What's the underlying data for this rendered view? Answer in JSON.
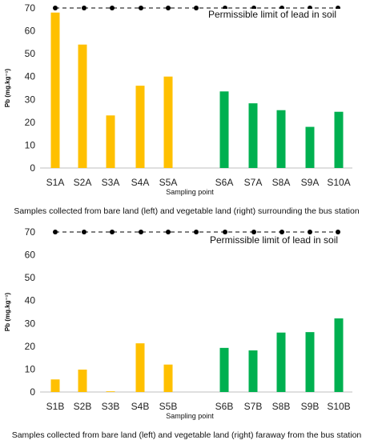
{
  "chart_data": [
    {
      "type": "bar",
      "categories": [
        "S1A",
        "S2A",
        "S3A",
        "S4A",
        "S5A",
        "S6A",
        "S7A",
        "S8A",
        "S9A",
        "S10A"
      ],
      "values": [
        68,
        54,
        23,
        36,
        40,
        33.5,
        28.3,
        25.3,
        18,
        24.6
      ],
      "bar_colors": [
        "#FFC000",
        "#FFC000",
        "#FFC000",
        "#FFC000",
        "#FFC000",
        "#00B050",
        "#00B050",
        "#00B050",
        "#00B050",
        "#00B050"
      ],
      "xlabel": "Sampling point",
      "ylabel": "Pb (mg.kg⁻¹)",
      "ylim": [
        0,
        70
      ],
      "yticks": [
        0,
        10,
        20,
        30,
        40,
        50,
        60,
        70
      ],
      "reference_line": {
        "value": 70,
        "label": "Permissible limit of lead in soil",
        "style": "dashed-with-dots"
      },
      "caption": "Samples collected from bare land (left) and vegetable land (right) surrounding the bus station",
      "grid": false
    },
    {
      "type": "bar",
      "categories": [
        "S1B",
        "S2B",
        "S3B",
        "S4B",
        "S5B",
        "S6B",
        "S7B",
        "S8B",
        "S9B",
        "S10B"
      ],
      "values": [
        5.5,
        9.8,
        0.3,
        21.3,
        12,
        19.3,
        18.2,
        26,
        26.2,
        32.2
      ],
      "bar_colors": [
        "#FFC000",
        "#FFC000",
        "#FFC000",
        "#FFC000",
        "#FFC000",
        "#00B050",
        "#00B050",
        "#00B050",
        "#00B050",
        "#00B050"
      ],
      "xlabel": "Sampling point",
      "ylabel": "Pb (mg.kg⁻¹)",
      "ylim": [
        0,
        70
      ],
      "yticks": [
        0,
        10,
        20,
        30,
        40,
        50,
        60,
        70
      ],
      "reference_line": {
        "value": 70,
        "label": "Permissible limit of lead in soil",
        "style": "dashed-with-dots"
      },
      "caption": "Samples collected from bare land (left) and vegetable land (right) faraway from the bus station",
      "grid": false
    }
  ]
}
